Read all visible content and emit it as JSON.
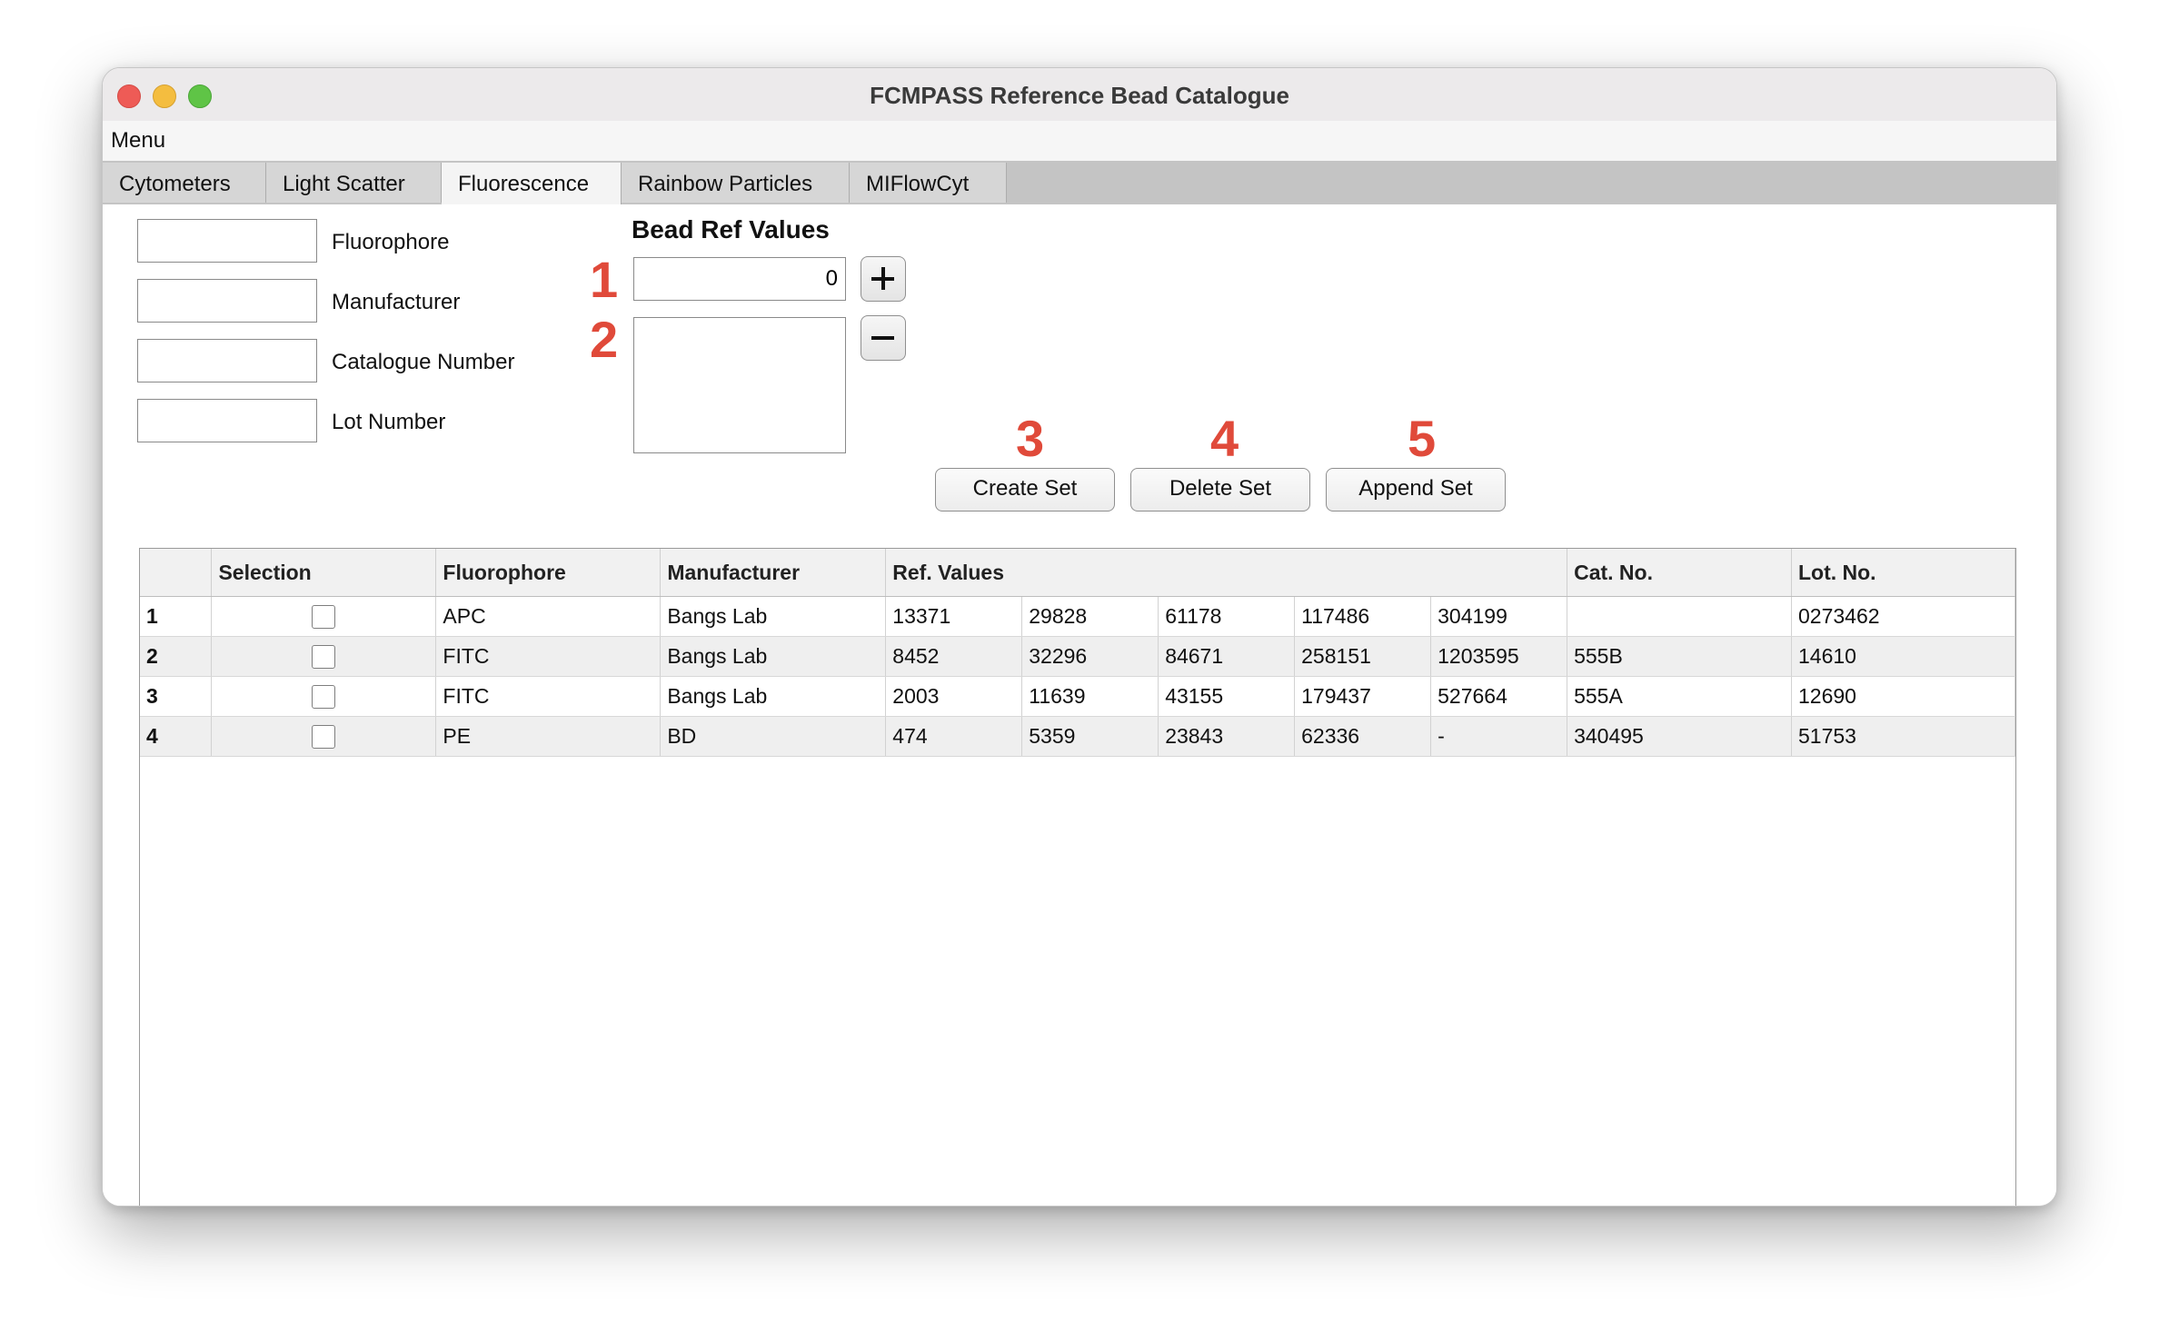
{
  "window": {
    "title": "FCMPASS Reference Bead Catalogue"
  },
  "menubar": {
    "menu_label": "Menu"
  },
  "tabs": [
    {
      "label": "Cytometers",
      "active": false
    },
    {
      "label": "Light Scatter",
      "active": false
    },
    {
      "label": "Fluorescence",
      "active": true
    },
    {
      "label": "Rainbow Particles",
      "active": false
    },
    {
      "label": "MIFlowCyt",
      "active": false
    }
  ],
  "form": {
    "fields": [
      {
        "label": "Fluorophore",
        "value": ""
      },
      {
        "label": "Manufacturer",
        "value": ""
      },
      {
        "label": "Catalogue Number",
        "value": ""
      },
      {
        "label": "Lot Number",
        "value": ""
      }
    ],
    "bead_ref": {
      "title": "Bead Ref Values",
      "value": "0"
    }
  },
  "annotations": [
    "1",
    "2",
    "3",
    "4",
    "5"
  ],
  "actions": {
    "create": "Create Set",
    "delete": "Delete Set",
    "append": "Append Set"
  },
  "icons": {
    "add": "plus-icon",
    "remove": "minus-icon"
  },
  "colors": {
    "annotation": "#e04a3a",
    "active_tab": "#f4f4f4",
    "tab_bar": "#c4c4c4"
  },
  "table": {
    "headers": {
      "selection": "Selection",
      "fluorophore": "Fluorophore",
      "manufacturer": "Manufacturer",
      "ref_values": "Ref. Values",
      "cat_no": "Cat. No.",
      "lot_no": "Lot. No."
    },
    "rows": [
      {
        "num": "1",
        "fluorophore": "APC",
        "manufacturer": "Bangs Lab",
        "refs": [
          "13371",
          "29828",
          "61178",
          "117486",
          "304199"
        ],
        "cat": "",
        "lot": "0273462",
        "selected": false
      },
      {
        "num": "2",
        "fluorophore": "FITC",
        "manufacturer": "Bangs Lab",
        "refs": [
          "8452",
          "32296",
          "84671",
          "258151",
          "1203595"
        ],
        "cat": "555B",
        "lot": "14610",
        "selected": false
      },
      {
        "num": "3",
        "fluorophore": "FITC",
        "manufacturer": "Bangs Lab",
        "refs": [
          "2003",
          "11639",
          "43155",
          "179437",
          "527664"
        ],
        "cat": "555A",
        "lot": "12690",
        "selected": false
      },
      {
        "num": "4",
        "fluorophore": "PE",
        "manufacturer": "BD",
        "refs": [
          "474",
          "5359",
          "23843",
          "62336",
          "-"
        ],
        "cat": "340495",
        "lot": "51753",
        "selected": false
      }
    ]
  }
}
